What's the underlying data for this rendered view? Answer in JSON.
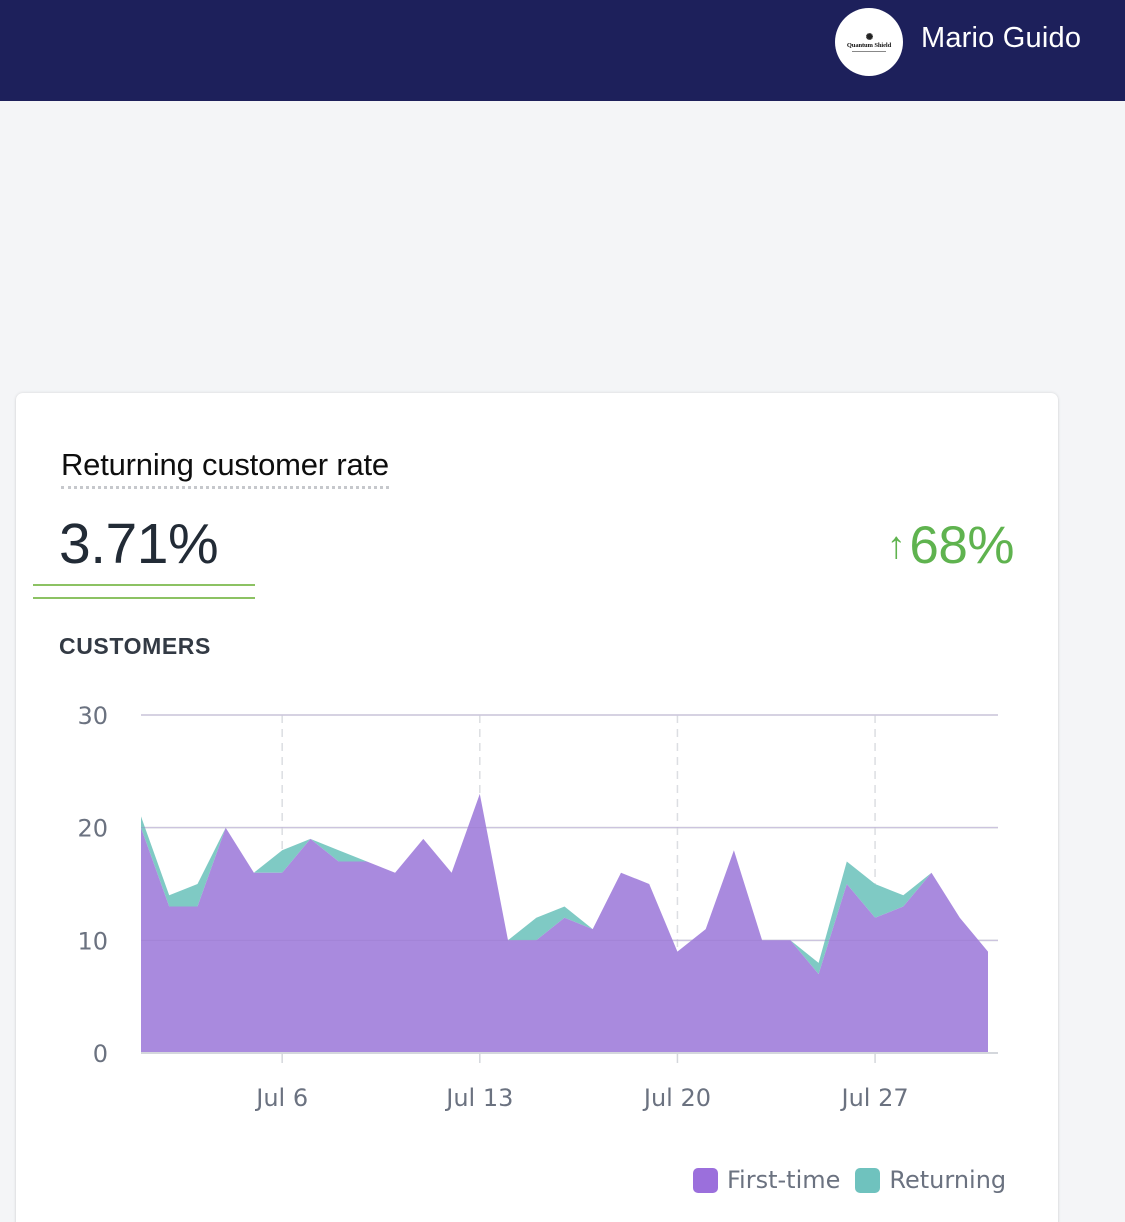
{
  "header": {
    "logo_text": "Quantum Shield",
    "user_name": "Mario Guido",
    "background_color": "#1d205b"
  },
  "card": {
    "title": "Returning customer rate",
    "value": "3.71%",
    "delta_icon": "arrow-up-icon",
    "delta_arrow": "↑",
    "delta_value": "68%",
    "delta_color": "#5fb34f",
    "section_label": "CUSTOMERS"
  },
  "chart_data": {
    "type": "area",
    "stacked": true,
    "title": "CUSTOMERS",
    "xlabel": "",
    "ylabel": "",
    "x": [
      "Jul 1",
      "Jul 2",
      "Jul 3",
      "Jul 4",
      "Jul 5",
      "Jul 6",
      "Jul 7",
      "Jul 8",
      "Jul 9",
      "Jul 10",
      "Jul 11",
      "Jul 12",
      "Jul 13",
      "Jul 14",
      "Jul 15",
      "Jul 16",
      "Jul 17",
      "Jul 18",
      "Jul 19",
      "Jul 20",
      "Jul 21",
      "Jul 22",
      "Jul 23",
      "Jul 24",
      "Jul 25",
      "Jul 26",
      "Jul 27",
      "Jul 28",
      "Jul 29",
      "Jul 30",
      "Jul 31"
    ],
    "x_ticks": [
      "Jul 6",
      "Jul 13",
      "Jul 20",
      "Jul 27"
    ],
    "y_ticks": [
      0,
      10,
      20,
      30
    ],
    "ylim": [
      0,
      30
    ],
    "grid": true,
    "legend_position": "bottom-right",
    "series": [
      {
        "name": "First-time",
        "color": "#a98ade",
        "legend_color": "#9b6fdc",
        "values": [
          20,
          13,
          13,
          20,
          16,
          16,
          19,
          17,
          17,
          16,
          19,
          16,
          23,
          10,
          10,
          12,
          11,
          16,
          15,
          9,
          11,
          18,
          10,
          10,
          7,
          15,
          12,
          13,
          16,
          12,
          9
        ]
      },
      {
        "name": "Returning",
        "color": "#7fcac4",
        "legend_color": "#6fc2be",
        "values": [
          1,
          1,
          2,
          0,
          0,
          2,
          0,
          1,
          0,
          0,
          0,
          0,
          0,
          0,
          2,
          1,
          0,
          0,
          0,
          0,
          0,
          0,
          0,
          0,
          1,
          2,
          3,
          1,
          0,
          0,
          0
        ]
      }
    ]
  }
}
